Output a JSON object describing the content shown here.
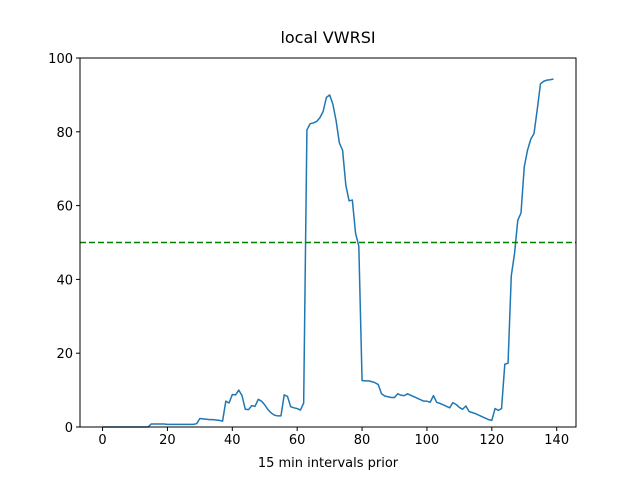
{
  "chart_data": {
    "type": "line",
    "title": "local VWRSI",
    "x_label": "15 min intervals prior",
    "x": [
      0,
      1,
      2,
      3,
      4,
      5,
      6,
      7,
      8,
      9,
      10,
      11,
      12,
      13,
      14,
      15,
      16,
      17,
      18,
      19,
      20,
      21,
      22,
      23,
      24,
      25,
      26,
      27,
      28,
      29,
      30,
      31,
      32,
      33,
      34,
      35,
      36,
      37,
      38,
      39,
      40,
      41,
      42,
      43,
      44,
      45,
      46,
      47,
      48,
      49,
      50,
      51,
      52,
      53,
      54,
      55,
      56,
      57,
      58,
      59,
      60,
      61,
      62,
      63,
      64,
      65,
      66,
      67,
      68,
      69,
      70,
      71,
      72,
      73,
      74,
      75,
      76,
      77,
      78,
      79,
      80,
      81,
      82,
      83,
      84,
      85,
      86,
      87,
      88,
      89,
      90,
      91,
      92,
      93,
      94,
      95,
      96,
      97,
      98,
      99,
      100,
      101,
      102,
      103,
      104,
      105,
      106,
      107,
      108,
      109,
      110,
      111,
      112,
      113,
      114,
      115,
      116,
      117,
      118,
      119,
      120,
      121,
      122,
      123,
      124,
      125,
      126,
      127,
      128,
      129,
      130,
      131,
      132,
      133,
      134,
      135,
      136,
      137,
      138,
      139
    ],
    "series": [
      {
        "name": "VWRSI",
        "color": "#1f77b4",
        "values": [
          0,
          0,
          0,
          0,
          0,
          0,
          0,
          0,
          0,
          0,
          0,
          0,
          0,
          0,
          0,
          0.8,
          0.8,
          0.8,
          0.8,
          0.8,
          0.7,
          0.7,
          0.7,
          0.7,
          0.7,
          0.7,
          0.7,
          0.7,
          0.7,
          0.9,
          2.3,
          2.2,
          2.1,
          2.0,
          2.0,
          1.9,
          1.8,
          1.6,
          7,
          6.5,
          8.8,
          8.7,
          10,
          8.5,
          4.8,
          4.7,
          5.8,
          5.6,
          7.5,
          7,
          6,
          4.7,
          3.8,
          3.2,
          3,
          3,
          8.7,
          8.3,
          5.5,
          5.2,
          5,
          4.6,
          6.5,
          80.5,
          82.2,
          82.4,
          82.8,
          83.8,
          85.5,
          89.3,
          90,
          87.5,
          83,
          77,
          75,
          65.5,
          61.3,
          61.5,
          52.5,
          49,
          12.6,
          12.5,
          12.5,
          12.3,
          12,
          11.5,
          9,
          8.4,
          8.2,
          8,
          8,
          9,
          8.6,
          8.5,
          9,
          8.6,
          8.2,
          7.8,
          7.4,
          7,
          7,
          6.7,
          8.5,
          6.7,
          6.4,
          6,
          5.6,
          5.2,
          6.6,
          6.1,
          5.3,
          4.8,
          5.7,
          4.2,
          3.9,
          3.6,
          3.2,
          2.8,
          2.4,
          2,
          1.8,
          5,
          4.5,
          5,
          17,
          17.3,
          41,
          47,
          56,
          58,
          70.5,
          75,
          78,
          79.5,
          86,
          93,
          93.7,
          94,
          94.1,
          94.3
        ]
      }
    ],
    "threshold": 50,
    "threshold_color": "#008000",
    "xlim": [
      -6.95,
      145.95
    ],
    "xticks": [
      0,
      20,
      40,
      60,
      80,
      100,
      120,
      140
    ],
    "ylim": [
      0,
      100
    ],
    "yticks": [
      0,
      20,
      40,
      60,
      80,
      100
    ]
  }
}
